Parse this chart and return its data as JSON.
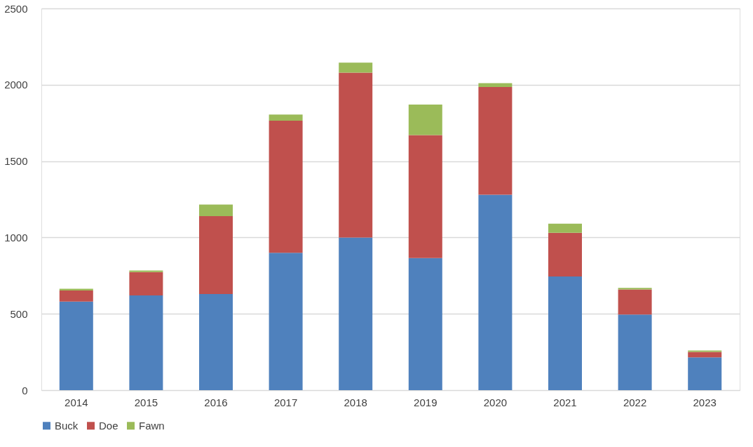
{
  "chart_data": {
    "type": "bar",
    "stacked": true,
    "categories": [
      "2014",
      "2015",
      "2016",
      "2017",
      "2018",
      "2019",
      "2020",
      "2021",
      "2022",
      "2023"
    ],
    "series": [
      {
        "name": "Buck",
        "color": "#4f81bd",
        "values": [
          580,
          620,
          630,
          900,
          1000,
          865,
          1280,
          745,
          495,
          215
        ]
      },
      {
        "name": "Doe",
        "color": "#c0504d",
        "values": [
          72,
          153,
          510,
          865,
          1080,
          805,
          705,
          285,
          165,
          35
        ]
      },
      {
        "name": "Fawn",
        "color": "#9bbb59",
        "values": [
          12,
          10,
          75,
          40,
          65,
          200,
          25,
          60,
          10,
          10
        ]
      }
    ],
    "ylim": [
      0,
      2500
    ],
    "yticks": [
      0,
      500,
      1000,
      1500,
      2000,
      2500
    ],
    "grid": "y",
    "legend": "bottom"
  }
}
